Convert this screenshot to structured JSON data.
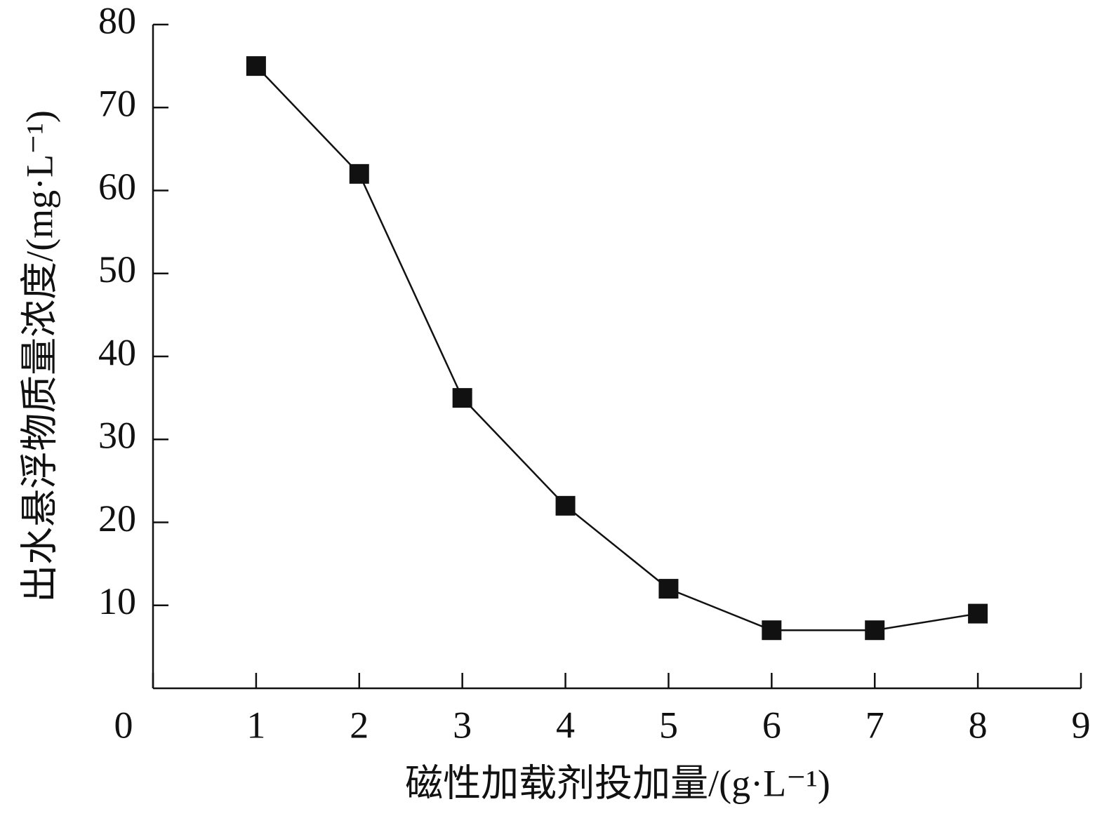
{
  "chart_data": {
    "type": "line",
    "x_label": "磁性加载剂投加量/(g·L⁻¹)",
    "y_label": "出水悬浮物质量浓度/(mg·L⁻¹)",
    "x": [
      1,
      2,
      3,
      4,
      5,
      6,
      7,
      8
    ],
    "values": [
      75,
      62,
      35,
      22,
      12,
      7,
      7,
      9
    ],
    "color": "#111111",
    "marker": "square",
    "xlim": [
      0,
      9
    ],
    "xticks": [
      0,
      1,
      2,
      3,
      4,
      5,
      6,
      7,
      8,
      9
    ],
    "ylim": [
      0,
      80
    ],
    "yticks": [
      10,
      20,
      30,
      40,
      50,
      60,
      70,
      80
    ],
    "grid": false
  }
}
